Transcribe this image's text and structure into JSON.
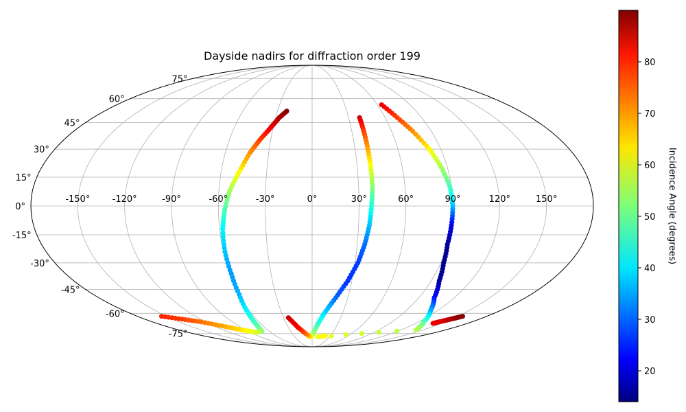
{
  "chart_data": {
    "type": "scatter",
    "projection": "mollweide",
    "title": "Dayside nadirs for diffraction order 199",
    "grid": true,
    "lon_ticks": [
      "-150°",
      "-120°",
      "-90°",
      "-60°",
      "-30°",
      "0°",
      "30°",
      "60°",
      "90°",
      "120°",
      "150°"
    ],
    "lon_tick_values": [
      -150,
      -120,
      -90,
      -60,
      -30,
      0,
      30,
      60,
      90,
      120,
      150
    ],
    "lat_ticks": [
      "-75°",
      "-60°",
      "-45°",
      "-30°",
      "-15°",
      "0°",
      "15°",
      "30°",
      "45°",
      "60°",
      "75°"
    ],
    "lat_tick_values": [
      -75,
      -60,
      -45,
      -30,
      -15,
      0,
      15,
      30,
      45,
      60,
      75
    ],
    "colorbar": {
      "label": "Incidence Angle (degrees)",
      "colormap": "jet",
      "range": [
        14,
        90
      ],
      "ticks": [
        "20",
        "30",
        "40",
        "50",
        "60",
        "70",
        "80"
      ],
      "tick_values": [
        20,
        30,
        40,
        50,
        60,
        70,
        80
      ]
    },
    "series": [
      {
        "points": [
          [
            -22,
            52,
            90
          ],
          [
            -27,
            48,
            87
          ],
          [
            -32,
            42,
            82
          ],
          [
            -38,
            35,
            76
          ],
          [
            -43,
            28,
            70
          ],
          [
            -48,
            18,
            62
          ],
          [
            -53,
            8,
            55
          ],
          [
            -56,
            -2,
            48
          ],
          [
            -58,
            -12,
            42
          ],
          [
            -59,
            -24,
            38
          ],
          [
            -59,
            -36,
            35
          ],
          [
            -60,
            -48,
            37
          ],
          [
            -63,
            -60,
            43
          ],
          [
            -66,
            -68,
            48
          ],
          [
            -70,
            -73,
            52
          ],
          [
            -80,
            -74,
            58
          ],
          [
            -95,
            -72,
            63
          ],
          [
            -110,
            -69,
            68
          ],
          [
            -125,
            -66,
            72
          ],
          [
            -140,
            -64,
            76
          ],
          [
            -155,
            -62,
            78
          ]
        ]
      },
      {
        "points": [
          [
            39,
            48,
            84
          ],
          [
            39,
            40,
            76
          ],
          [
            39,
            30,
            68
          ],
          [
            39,
            20,
            60
          ],
          [
            39,
            10,
            53
          ],
          [
            38,
            0,
            45
          ],
          [
            37,
            -10,
            38
          ],
          [
            35,
            -20,
            32
          ],
          [
            32,
            -30,
            28
          ],
          [
            27,
            -40,
            27
          ],
          [
            20,
            -50,
            31
          ],
          [
            12,
            -60,
            40
          ],
          [
            5,
            -70,
            48
          ],
          [
            0,
            -77,
            56
          ],
          [
            -3,
            -78,
            62
          ],
          [
            -10,
            -75,
            72
          ],
          [
            -18,
            -70,
            80
          ],
          [
            -25,
            -63,
            84
          ]
        ]
      },
      {
        "points": [
          [
            64,
            56,
            82
          ],
          [
            70,
            48,
            76
          ],
          [
            76,
            40,
            70
          ],
          [
            82,
            30,
            62
          ],
          [
            86,
            20,
            55
          ],
          [
            89,
            10,
            48
          ],
          [
            90,
            0,
            38
          ],
          [
            90,
            -10,
            22
          ],
          [
            90,
            -20,
            16
          ],
          [
            92,
            -30,
            15
          ],
          [
            96,
            -40,
            16
          ],
          [
            103,
            -50,
            24
          ],
          [
            113,
            -58,
            36
          ],
          [
            126,
            -66,
            48
          ],
          [
            140,
            -72,
            56
          ],
          [
            10,
            -78,
            60
          ],
          [
            22,
            -77,
            62
          ]
        ]
      },
      {
        "points": [
          [
            155,
            -62,
            90
          ],
          [
            152,
            -63,
            89
          ],
          [
            149,
            -64,
            87
          ],
          [
            146,
            -65,
            85
          ],
          [
            143,
            -66,
            83
          ],
          [
            140,
            -67,
            82
          ]
        ]
      }
    ]
  }
}
